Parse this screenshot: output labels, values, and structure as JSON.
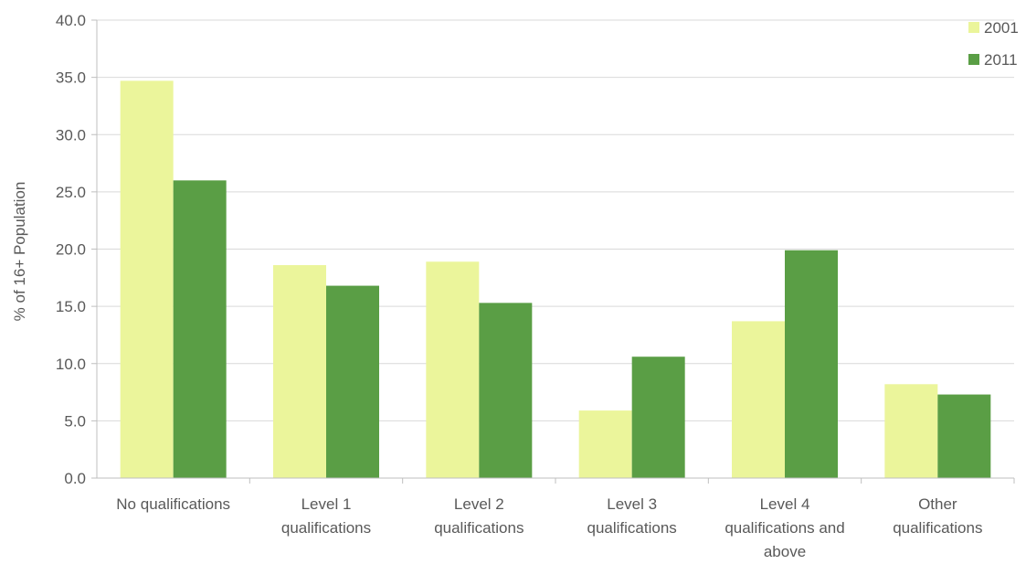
{
  "chart_data": {
    "type": "bar",
    "title": "",
    "xlabel": "",
    "ylabel": "% of 16+ Population",
    "ylim": [
      0,
      40
    ],
    "yticks": [
      "0.0",
      "5.0",
      "10.0",
      "15.0",
      "20.0",
      "25.0",
      "30.0",
      "35.0",
      "40.0"
    ],
    "grid": true,
    "legend_position": "top-right",
    "categories": [
      [
        "No qualifications"
      ],
      [
        "Level 1",
        "qualifications"
      ],
      [
        "Level 2",
        "qualifications"
      ],
      [
        "Level 3",
        "qualifications"
      ],
      [
        "Level 4",
        "qualifications and",
        "above"
      ],
      [
        "Other",
        "qualifications"
      ]
    ],
    "series": [
      {
        "name": "2001",
        "color": "#ebf59b",
        "values": [
          34.7,
          18.6,
          18.9,
          5.9,
          13.7,
          8.2
        ]
      },
      {
        "name": "2011",
        "color": "#5a9e45",
        "values": [
          26.0,
          16.8,
          15.3,
          10.6,
          19.9,
          7.3
        ]
      }
    ]
  }
}
